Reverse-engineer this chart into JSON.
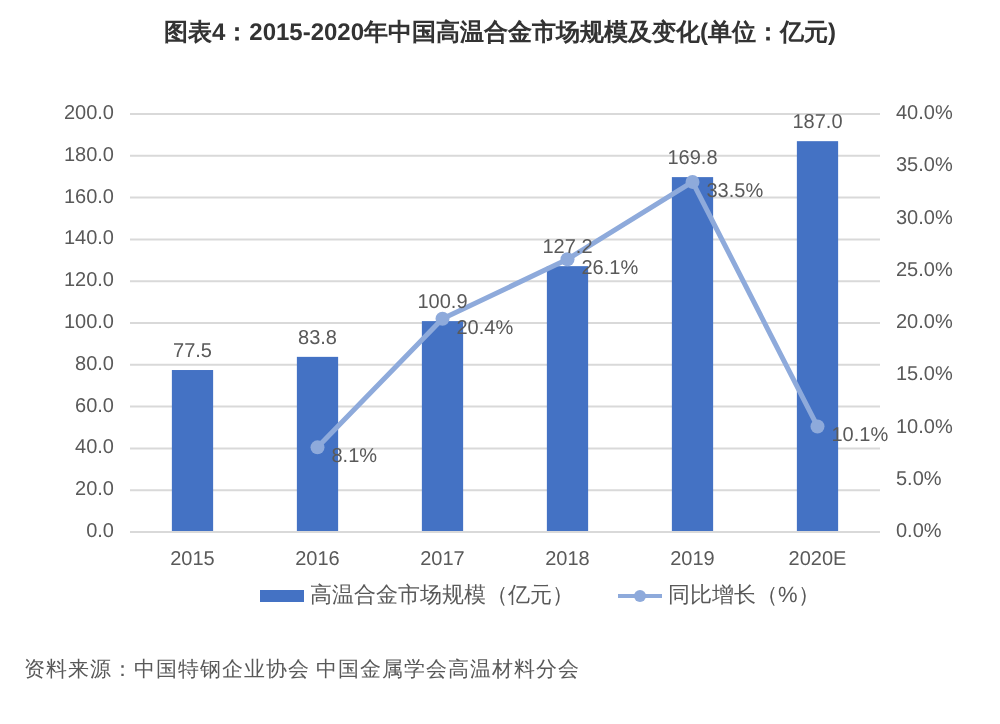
{
  "chart_data": {
    "type": "bar",
    "title": "图表4：2015-2020年中国高温合金市场规模及变化(单位：亿元)",
    "categories": [
      "2015",
      "2016",
      "2017",
      "2018",
      "2019",
      "2020E"
    ],
    "series": [
      {
        "name": "高温合金市场规模（亿元）",
        "color": "#4472c4",
        "values": [
          77.5,
          83.8,
          100.9,
          127.2,
          169.8,
          187.0
        ],
        "value_labels": [
          "77.5",
          "83.8",
          "100.9",
          "127.2",
          "169.8",
          "187.0"
        ]
      },
      {
        "name": "同比增长（%）",
        "type": "line",
        "axis": "y2",
        "color": "#8eaadb",
        "marker": "circle",
        "values": [
          null,
          8.1,
          20.4,
          26.1,
          33.5,
          10.1
        ],
        "value_labels": [
          null,
          "8.1%",
          "20.4%",
          "26.1%",
          "33.5%",
          "10.1%"
        ]
      }
    ],
    "ylim": [
      0,
      200
    ],
    "yticks": [
      {
        "value": 0,
        "label": "0.0"
      },
      {
        "value": 20,
        "label": "20.0"
      },
      {
        "value": 40,
        "label": "40.0"
      },
      {
        "value": 60,
        "label": "60.0"
      },
      {
        "value": 80,
        "label": "80.0"
      },
      {
        "value": 100,
        "label": "100.0"
      },
      {
        "value": 120,
        "label": "120.0"
      },
      {
        "value": 140,
        "label": "140.0"
      },
      {
        "value": 160,
        "label": "160.0"
      },
      {
        "value": 180,
        "label": "180.0"
      },
      {
        "value": 200,
        "label": "200.0"
      }
    ],
    "y2lim": [
      0,
      40
    ],
    "y2ticks": [
      {
        "value": 0,
        "label": "0.0%"
      },
      {
        "value": 5,
        "label": "5.0%"
      },
      {
        "value": 10,
        "label": "10.0%"
      },
      {
        "value": 15,
        "label": "15.0%"
      },
      {
        "value": 20,
        "label": "20.0%"
      },
      {
        "value": 25,
        "label": "25.0%"
      },
      {
        "value": 30,
        "label": "30.0%"
      },
      {
        "value": 35,
        "label": "35.0%"
      },
      {
        "value": 40,
        "label": "40.0%"
      }
    ],
    "grid": "y",
    "legend": "bottom",
    "annotations": [
      "资料来源：中国特钢企业协会 中国金属学会高温材料分会"
    ]
  }
}
